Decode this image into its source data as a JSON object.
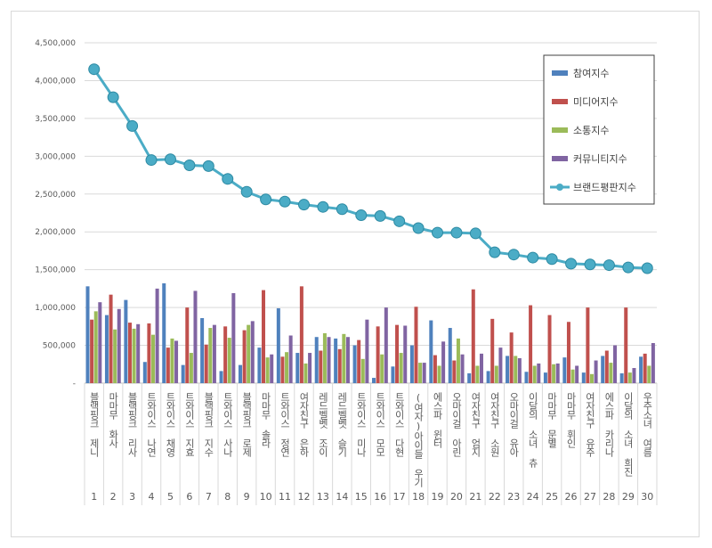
{
  "chart_data": {
    "type": "bar+line",
    "categories": [
      "블랙핑크 제니",
      "마마무 화사",
      "블랙핑크 리사",
      "트와이스 나연",
      "트와이스 채영",
      "트와이스 지효",
      "블랙핑크 지수",
      "트와이스 사나",
      "블랙핑크 로제",
      "마마무 솔라",
      "트와이스 정연",
      "여자친구 은하",
      "레드벨벳 조이",
      "레드벨벳 슬기",
      "트와이스 미나",
      "트와이스 모모",
      "트와이스 다현",
      "(여자)아이들 우기",
      "에스파 윈터",
      "오마이걸 아린",
      "여자친구 엄지",
      "여자친구 소원",
      "오마이걸 유아",
      "이달의 소녀 츄",
      "마마무 문별",
      "마마무 휘인",
      "여자친구 유주",
      "에스파 카리나",
      "이달의 소녀 희진",
      "우주소녀 여름"
    ],
    "ranks": [
      "1",
      "2",
      "3",
      "4",
      "5",
      "6",
      "7",
      "8",
      "9",
      "10",
      "11",
      "12",
      "13",
      "14",
      "15",
      "16",
      "17",
      "18",
      "19",
      "20",
      "21",
      "22",
      "23",
      "24",
      "25",
      "26",
      "27",
      "28",
      "29",
      "30"
    ],
    "ylim": [
      0,
      4500000
    ],
    "yticks": [
      0,
      500000,
      1000000,
      1500000,
      2000000,
      2500000,
      3000000,
      3500000,
      4000000,
      4500000
    ],
    "ytick_labels": [
      "-",
      "500,000",
      "1,000,000",
      "1,500,000",
      "2,000,000",
      "2,500,000",
      "3,000,000",
      "3,500,000",
      "4,000,000",
      "4,500,000"
    ],
    "grid": true,
    "legend_position": "top-right",
    "series": [
      {
        "name": "참여지수",
        "type": "bar",
        "color": "#4f81bd",
        "values": [
          1280000,
          900000,
          1100000,
          280000,
          1320000,
          240000,
          860000,
          160000,
          240000,
          470000,
          990000,
          400000,
          610000,
          590000,
          500000,
          70000,
          220000,
          500000,
          830000,
          730000,
          130000,
          160000,
          360000,
          150000,
          140000,
          340000,
          140000,
          360000,
          130000,
          350000
        ]
      },
      {
        "name": "미디어지수",
        "type": "bar",
        "color": "#c0504d",
        "values": [
          840000,
          1170000,
          800000,
          790000,
          470000,
          1000000,
          510000,
          750000,
          700000,
          1230000,
          350000,
          1280000,
          430000,
          450000,
          570000,
          750000,
          770000,
          1010000,
          370000,
          300000,
          1240000,
          850000,
          670000,
          1030000,
          900000,
          810000,
          1000000,
          430000,
          1000000,
          390000
        ]
      },
      {
        "name": "소통지수",
        "type": "bar",
        "color": "#9bbb59",
        "values": [
          950000,
          710000,
          720000,
          640000,
          590000,
          400000,
          730000,
          600000,
          770000,
          340000,
          410000,
          260000,
          660000,
          650000,
          320000,
          380000,
          400000,
          270000,
          230000,
          590000,
          230000,
          230000,
          360000,
          230000,
          250000,
          180000,
          120000,
          270000,
          140000,
          230000
        ]
      },
      {
        "name": "커뮤니티지수",
        "type": "bar",
        "color": "#8064a2",
        "values": [
          1070000,
          980000,
          780000,
          1250000,
          560000,
          1220000,
          770000,
          1190000,
          820000,
          380000,
          630000,
          400000,
          610000,
          610000,
          840000,
          1000000,
          760000,
          270000,
          550000,
          380000,
          390000,
          470000,
          330000,
          260000,
          260000,
          230000,
          300000,
          500000,
          200000,
          530000
        ]
      },
      {
        "name": "브랜드평판지수",
        "type": "line",
        "color": "#4bacc6",
        "values": [
          4150000,
          3780000,
          3400000,
          2950000,
          2960000,
          2880000,
          2870000,
          2700000,
          2530000,
          2430000,
          2400000,
          2360000,
          2330000,
          2300000,
          2220000,
          2210000,
          2140000,
          2050000,
          1990000,
          1990000,
          1980000,
          1730000,
          1700000,
          1660000,
          1640000,
          1580000,
          1570000,
          1560000,
          1530000,
          1520000
        ]
      }
    ]
  }
}
